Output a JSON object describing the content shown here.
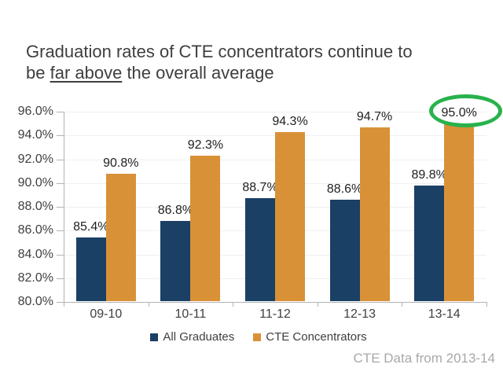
{
  "slide": {
    "title": {
      "line1": "Graduation rates of CTE concentrators continue to",
      "line2_prefix": "be ",
      "line2_underlined": "far above",
      "line2_suffix": " the overall average"
    },
    "footer": "CTE Data from 2013-14"
  },
  "colors": {
    "all_graduates_bar": "#1a4066",
    "cte_concentrators_bar": "#d99138",
    "annotation_ellipse": "#28b24c",
    "gridline": "#efefef",
    "axis_line": "#b3b3b3",
    "title_text": "#3e3e3e",
    "axis_text": "#3f3f3f",
    "data_label_text": "#202020",
    "footer_text": "#a8a8a8"
  },
  "chart_data": {
    "type": "bar",
    "title": "",
    "xlabel": "",
    "ylabel": "",
    "categories": [
      "09-10",
      "10-11",
      "11-12",
      "12-13",
      "13-14"
    ],
    "series": [
      {
        "name": "All Graduates",
        "color": "#1a4066",
        "values": [
          85.4,
          86.8,
          88.7,
          88.6,
          89.8
        ],
        "labels": [
          "85.4%",
          "86.8%",
          "88.7%",
          "88.6%",
          "89.8%"
        ]
      },
      {
        "name": "CTE Concentrators",
        "color": "#d99138",
        "values": [
          90.8,
          92.3,
          94.3,
          94.7,
          95.0
        ],
        "labels": [
          "90.8%",
          "92.3%",
          "94.3%",
          "94.7%",
          "95.0%"
        ]
      }
    ],
    "y_axis": {
      "min": 80,
      "max": 96,
      "tick_values": [
        80,
        82,
        84,
        86,
        88,
        90,
        92,
        94,
        96
      ],
      "tick_labels": [
        "80.0%",
        "82.0%",
        "84.0%",
        "86.0%",
        "88.0%",
        "90.0%",
        "92.0%",
        "94.0%",
        "96.0%"
      ]
    },
    "grid": true,
    "legend_position": "bottom",
    "annotation": {
      "shape": "ellipse",
      "highlights": "95.0%",
      "target_series": "CTE Concentrators",
      "target_category": "13-14"
    }
  }
}
